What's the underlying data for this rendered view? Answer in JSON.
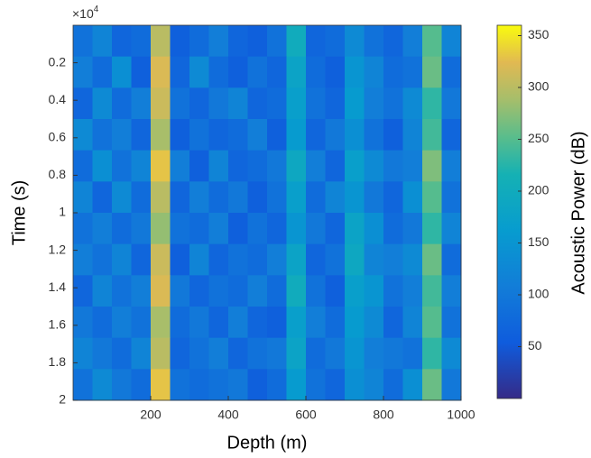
{
  "chart_data": {
    "type": "heatmap",
    "x_label": "Depth (m)",
    "y_label": "Time (s)",
    "colorbar_label": "Acoustic Power (dB)",
    "y_multiplier": "×10",
    "y_multiplier_exponent": "4",
    "xlim": [
      0,
      1000
    ],
    "ylim": [
      0,
      20000
    ],
    "y_reversed": true,
    "xticks": [
      200,
      400,
      600,
      800,
      1000
    ],
    "yticks": [
      {
        "value": 2000,
        "label": "0.2"
      },
      {
        "value": 4000,
        "label": "0.4"
      },
      {
        "value": 6000,
        "label": "0.6"
      },
      {
        "value": 8000,
        "label": "0.8"
      },
      {
        "value": 10000,
        "label": "1"
      },
      {
        "value": 12000,
        "label": "1.2"
      },
      {
        "value": 14000,
        "label": "1.4"
      },
      {
        "value": 16000,
        "label": "1.6"
      },
      {
        "value": 18000,
        "label": "1.8"
      },
      {
        "value": 20000,
        "label": "2"
      }
    ],
    "colormap": "parula",
    "clim": [
      0,
      360
    ],
    "cticks": [
      50,
      100,
      150,
      200,
      250,
      300,
      350
    ],
    "z": [
      [
        90,
        120,
        70,
        80,
        300,
        60,
        80,
        110,
        70,
        60,
        90,
        200,
        70,
        80,
        130,
        90,
        70,
        110,
        250,
        120
      ],
      [
        110,
        80,
        140,
        60,
        320,
        70,
        130,
        80,
        60,
        90,
        70,
        180,
        80,
        60,
        150,
        120,
        80,
        90,
        260,
        80
      ],
      [
        70,
        130,
        80,
        110,
        310,
        90,
        70,
        100,
        120,
        70,
        80,
        170,
        90,
        70,
        160,
        110,
        90,
        130,
        230,
        100
      ],
      [
        130,
        90,
        110,
        70,
        290,
        60,
        90,
        70,
        80,
        110,
        60,
        160,
        70,
        100,
        140,
        90,
        60,
        120,
        240,
        70
      ],
      [
        80,
        140,
        90,
        120,
        330,
        110,
        60,
        120,
        70,
        80,
        100,
        190,
        110,
        70,
        170,
        130,
        100,
        110,
        270,
        110
      ],
      [
        120,
        70,
        130,
        80,
        300,
        70,
        110,
        80,
        100,
        60,
        90,
        170,
        80,
        120,
        150,
        100,
        70,
        140,
        250,
        90
      ],
      [
        90,
        110,
        80,
        100,
        280,
        90,
        80,
        110,
        60,
        90,
        70,
        150,
        100,
        70,
        180,
        140,
        80,
        100,
        230,
        120
      ],
      [
        110,
        90,
        120,
        70,
        310,
        60,
        120,
        70,
        90,
        80,
        110,
        180,
        70,
        90,
        190,
        120,
        110,
        130,
        260,
        80
      ],
      [
        70,
        120,
        90,
        110,
        320,
        100,
        70,
        90,
        80,
        110,
        80,
        200,
        90,
        60,
        170,
        150,
        90,
        110,
        240,
        110
      ],
      [
        100,
        80,
        110,
        90,
        290,
        80,
        100,
        70,
        110,
        70,
        60,
        170,
        110,
        80,
        160,
        130,
        70,
        120,
        250,
        90
      ],
      [
        120,
        100,
        80,
        120,
        300,
        70,
        90,
        110,
        70,
        90,
        100,
        180,
        80,
        100,
        150,
        110,
        100,
        90,
        230,
        130
      ],
      [
        90,
        130,
        100,
        80,
        330,
        90,
        80,
        90,
        100,
        60,
        80,
        160,
        90,
        70,
        140,
        120,
        80,
        140,
        260,
        100
      ]
    ]
  }
}
